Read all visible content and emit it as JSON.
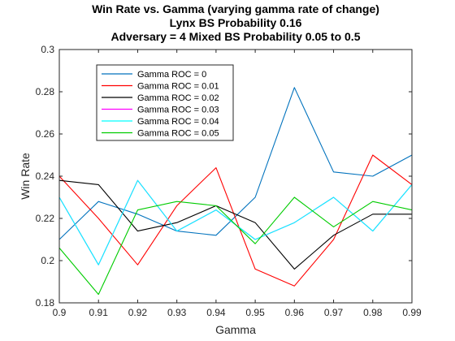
{
  "chart_data": {
    "type": "line",
    "title": [
      "Win Rate vs. Gamma (varying gamma rate of change)",
      "Lynx BS Probability 0.16",
      "Adversary = 4 Mixed BS Probability 0.05 to 0.5"
    ],
    "xlabel": "Gamma",
    "ylabel": "Win Rate",
    "xlim": [
      0.9,
      0.99
    ],
    "ylim": [
      0.18,
      0.3
    ],
    "x": [
      0.9,
      0.91,
      0.92,
      0.93,
      0.94,
      0.95,
      0.96,
      0.97,
      0.98,
      0.99
    ],
    "x_ticks": [
      "0.9",
      "0.91",
      "0.92",
      "0.93",
      "0.94",
      "0.95",
      "0.96",
      "0.97",
      "0.98",
      "0.99"
    ],
    "y_ticks": [
      "0.18",
      "0.2",
      "0.22",
      "0.24",
      "0.26",
      "0.28",
      "0.3"
    ],
    "y_tick_values": [
      0.18,
      0.2,
      0.22,
      0.24,
      0.26,
      0.28,
      0.3
    ],
    "grid": false,
    "legend_position": "top-left",
    "series": [
      {
        "name": "Gamma ROC = 0",
        "color": "#0072BD",
        "values": [
          0.21,
          0.228,
          0.222,
          0.214,
          0.212,
          0.23,
          0.282,
          0.242,
          0.24,
          0.25
        ]
      },
      {
        "name": "Gamma ROC = 0.01",
        "color": "#FF0000",
        "values": [
          0.24,
          0.22,
          0.198,
          0.226,
          0.244,
          0.196,
          0.188,
          0.21,
          0.25,
          0.236
        ]
      },
      {
        "name": "Gamma ROC = 0.02",
        "color": "#000000",
        "values": [
          0.238,
          0.236,
          0.214,
          0.218,
          0.226,
          0.218,
          0.196,
          0.212,
          0.222,
          0.222
        ]
      },
      {
        "name": "Gamma ROC = 0.03",
        "color": "#FF00FF",
        "values": [
          0.23,
          0.198,
          0.238,
          0.214,
          0.224,
          0.21,
          0.218,
          0.23,
          0.214,
          0.236
        ]
      },
      {
        "name": "Gamma ROC = 0.04",
        "color": "#00FFFF",
        "values": [
          0.23,
          0.198,
          0.238,
          0.214,
          0.224,
          0.21,
          0.218,
          0.23,
          0.214,
          0.236
        ]
      },
      {
        "name": "Gamma ROC = 0.05",
        "color": "#00CC00",
        "values": [
          0.206,
          0.184,
          0.224,
          0.228,
          0.226,
          0.208,
          0.23,
          0.216,
          0.228,
          0.224
        ]
      }
    ]
  }
}
